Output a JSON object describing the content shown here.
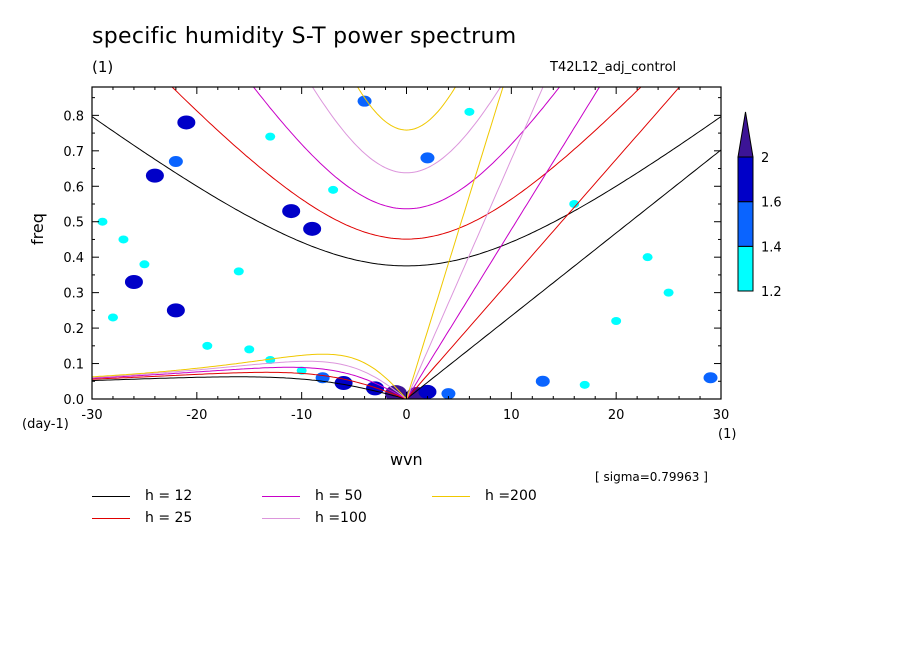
{
  "header": {
    "title": "specific humidity S-T power spectrum",
    "title_unit": "(1)",
    "run_name": "T42L12_adj_control",
    "sigma_note": "[ sigma=0.79963 ]"
  },
  "chart_data": {
    "type": "heatmap",
    "title": "specific humidity S-T power spectrum",
    "xlabel": "wvn",
    "ylabel": "freq",
    "x_unit": "(1)",
    "y_unit": "(day-1)",
    "xlim": [
      -30,
      30
    ],
    "ylim": [
      0,
      0.88
    ],
    "x_ticks": [
      -30,
      -20,
      -10,
      0,
      10,
      20,
      30
    ],
    "x_tick_labels": [
      "-30",
      "-20",
      "-10",
      "0",
      "10",
      "20",
      "30"
    ],
    "y_ticks": [
      0,
      0.1,
      0.2,
      0.3,
      0.4,
      0.5,
      0.6,
      0.7,
      0.8
    ],
    "y_tick_labels": [
      "0.0",
      "0.1",
      "0.2",
      "0.3",
      "0.4",
      "0.5",
      "0.6",
      "0.7",
      "0.8"
    ],
    "colorbar": {
      "levels": [
        1.2,
        1.4,
        1.6,
        2
      ],
      "level_labels": [
        "1.2",
        "1.4",
        "1.6",
        "2"
      ],
      "colors": [
        "#00ffff",
        "#0a64ff",
        "#0000c8",
        "#3c1496"
      ]
    },
    "shaded_regions": [
      {
        "x": 1,
        "y": 0.01,
        "level": 2
      },
      {
        "x": -1,
        "y": 0.015,
        "level": 2
      },
      {
        "x": 2,
        "y": 0.02,
        "level": 1.6
      },
      {
        "x": -3,
        "y": 0.03,
        "level": 1.6
      },
      {
        "x": -6,
        "y": 0.045,
        "level": 1.6
      },
      {
        "x": 4,
        "y": 0.015,
        "level": 1.4
      },
      {
        "x": -8,
        "y": 0.06,
        "level": 1.4
      },
      {
        "x": -10,
        "y": 0.08,
        "level": 1.2
      },
      {
        "x": -13,
        "y": 0.11,
        "level": 1.2
      },
      {
        "x": -15,
        "y": 0.14,
        "level": 1.2
      },
      {
        "x": 13,
        "y": 0.05,
        "level": 1.4
      },
      {
        "x": 17,
        "y": 0.04,
        "level": 1.2
      },
      {
        "x": 29,
        "y": 0.06,
        "level": 1.4
      },
      {
        "x": -24,
        "y": 0.63,
        "level": 1.6
      },
      {
        "x": -21,
        "y": 0.78,
        "level": 1.6
      },
      {
        "x": -27,
        "y": 0.45,
        "level": 1.2
      },
      {
        "x": -29,
        "y": 0.5,
        "level": 1.2
      },
      {
        "x": -9,
        "y": 0.48,
        "level": 1.6
      },
      {
        "x": -11,
        "y": 0.53,
        "level": 1.6
      },
      {
        "x": -26,
        "y": 0.33,
        "level": 1.6
      },
      {
        "x": -22,
        "y": 0.25,
        "level": 1.6
      },
      {
        "x": -22,
        "y": 0.67,
        "level": 1.4
      },
      {
        "x": -16,
        "y": 0.36,
        "level": 1.2
      },
      {
        "x": -4,
        "y": 0.84,
        "level": 1.4
      },
      {
        "x": 2,
        "y": 0.68,
        "level": 1.4
      },
      {
        "x": -25,
        "y": 0.38,
        "level": 1.2
      },
      {
        "x": -19,
        "y": 0.15,
        "level": 1.2
      },
      {
        "x": -28,
        "y": 0.23,
        "level": 1.2
      },
      {
        "x": 6,
        "y": 0.81,
        "level": 1.2
      },
      {
        "x": -13,
        "y": 0.74,
        "level": 1.2
      },
      {
        "x": -7,
        "y": 0.59,
        "level": 1.2
      },
      {
        "x": 16,
        "y": 0.55,
        "level": 1.2
      },
      {
        "x": 23,
        "y": 0.4,
        "level": 1.2
      },
      {
        "x": 20,
        "y": 0.22,
        "level": 1.2
      },
      {
        "x": 25,
        "y": 0.3,
        "level": 1.2
      }
    ],
    "dispersion_curves": [
      {
        "name": "h = 12",
        "label": "h = 12",
        "color": "#000000",
        "equivalent_depth_m": 12
      },
      {
        "name": "h = 25",
        "label": "h = 25",
        "color": "#e00000",
        "equivalent_depth_m": 25
      },
      {
        "name": "h = 50",
        "label": "h = 50",
        "color": "#c800c8",
        "equivalent_depth_m": 50
      },
      {
        "name": "h =100",
        "label": "h =100",
        "color": "#dc96dc",
        "equivalent_depth_m": 100
      },
      {
        "name": "h =200",
        "label": "h =200",
        "color": "#f0c800",
        "equivalent_depth_m": 200
      }
    ]
  }
}
